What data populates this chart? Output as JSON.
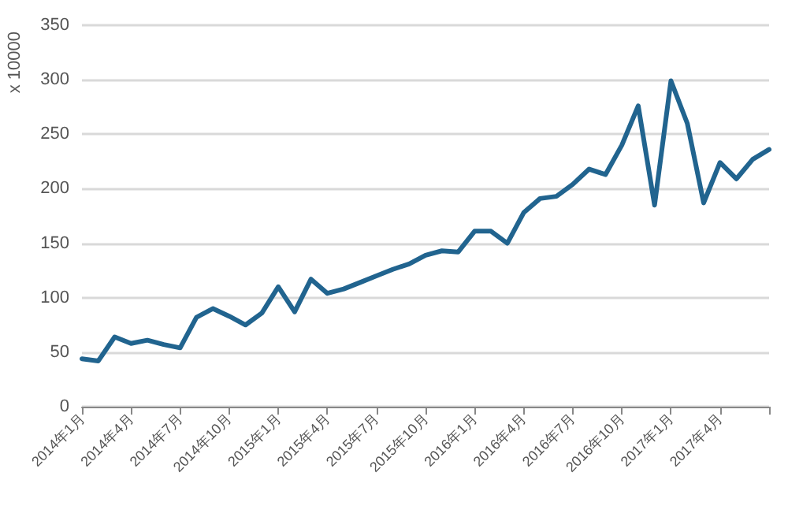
{
  "chart_data": {
    "type": "line",
    "ylabel": "x 10000",
    "categories": [
      "2014年1月",
      null,
      null,
      "2014年4月",
      null,
      null,
      "2014年7月",
      null,
      null,
      "2014年10月",
      null,
      null,
      "2015年1月",
      null,
      null,
      "2015年4月",
      null,
      null,
      "2015年7月",
      null,
      null,
      "2015年10月",
      null,
      null,
      "2016年1月",
      null,
      null,
      "2016年4月",
      null,
      null,
      "2016年7月",
      null,
      null,
      "2016年10月",
      null,
      null,
      "2017年1月",
      null,
      null,
      "2017年4月",
      null,
      null,
      null
    ],
    "series": [
      {
        "color": "#21648f",
        "values": [
          44,
          42,
          64,
          58,
          61,
          57,
          54,
          82,
          90,
          83,
          75,
          86,
          110,
          87,
          117,
          104,
          108,
          114,
          120,
          126,
          131,
          139,
          143,
          142,
          161,
          161,
          150,
          178,
          191,
          193,
          204,
          218,
          213,
          240,
          276,
          185,
          299,
          260,
          187,
          224,
          209,
          227,
          236
        ]
      }
    ],
    "ylim": [
      0,
      350
    ],
    "yticks": [
      0,
      50,
      100,
      150,
      200,
      250,
      300,
      350
    ],
    "grid": "y",
    "marker": "none",
    "line_style": "solid"
  }
}
